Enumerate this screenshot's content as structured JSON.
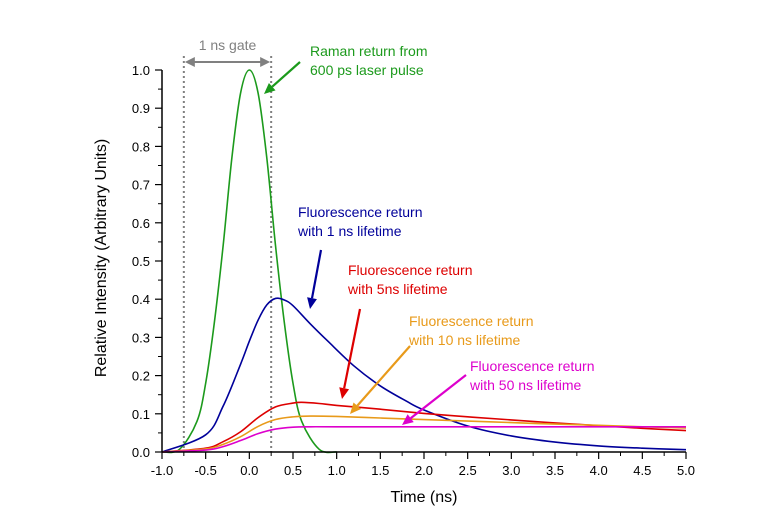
{
  "chart_data": {
    "type": "line",
    "title": "",
    "xlabel": "Time (ns)",
    "ylabel": "Relative Intensity (Arbitrary Units)",
    "xlim": [
      -1.0,
      5.0
    ],
    "ylim": [
      0.0,
      1.0
    ],
    "grid": false,
    "x_ticks": [
      "-1.0",
      "-0.5",
      "0.0",
      "0.5",
      "1.0",
      "1.5",
      "2.0",
      "2.5",
      "3.0",
      "3.5",
      "4.0",
      "4.5",
      "5.0"
    ],
    "y_ticks": [
      "0.0",
      "0.1",
      "0.2",
      "0.3",
      "0.4",
      "0.5",
      "0.6",
      "0.7",
      "0.8",
      "0.9",
      "1.0"
    ],
    "gate": {
      "label": "1 ns gate",
      "x_start": -0.75,
      "x_end": 0.25,
      "color": "#808080"
    },
    "series": [
      {
        "key": "raman",
        "color": "#1c9a1c",
        "x": [
          -1.0,
          -0.8,
          -0.6,
          -0.5,
          -0.4,
          -0.3,
          -0.2,
          -0.1,
          0.0,
          0.1,
          0.2,
          0.3,
          0.4,
          0.5,
          0.6,
          0.8,
          1.0
        ],
        "values": [
          0.0,
          0.007,
          0.08,
          0.18,
          0.34,
          0.54,
          0.77,
          0.94,
          1.0,
          0.94,
          0.77,
          0.54,
          0.34,
          0.18,
          0.08,
          0.007,
          0.0
        ]
      },
      {
        "key": "fluor_1ns",
        "color": "#00009a",
        "x": [
          -1.0,
          -0.5,
          -0.3,
          -0.1,
          0.0,
          0.1,
          0.2,
          0.3,
          0.4,
          0.5,
          0.7,
          0.9,
          1.2,
          1.5,
          1.8,
          2.0,
          2.5,
          3.0,
          3.5,
          4.0,
          4.5,
          5.0
        ],
        "values": [
          0.0,
          0.045,
          0.12,
          0.23,
          0.29,
          0.345,
          0.385,
          0.402,
          0.398,
          0.383,
          0.335,
          0.29,
          0.225,
          0.173,
          0.133,
          0.11,
          0.068,
          0.042,
          0.026,
          0.016,
          0.01,
          0.006
        ]
      },
      {
        "key": "fluor_5ns",
        "color": "#dd0000",
        "x": [
          -1.0,
          -0.5,
          -0.3,
          -0.1,
          0.1,
          0.3,
          0.5,
          0.6,
          0.8,
          1.0,
          1.5,
          2.0,
          2.5,
          3.0,
          3.5,
          4.0,
          4.5,
          5.0
        ],
        "values": [
          0.0,
          0.01,
          0.027,
          0.053,
          0.09,
          0.118,
          0.128,
          0.13,
          0.127,
          0.122,
          0.112,
          0.101,
          0.092,
          0.084,
          0.076,
          0.069,
          0.062,
          0.056
        ]
      },
      {
        "key": "fluor_10ns",
        "color": "#e89a1a",
        "x": [
          -1.0,
          -0.5,
          -0.3,
          -0.1,
          0.1,
          0.3,
          0.5,
          0.7,
          1.0,
          1.5,
          2.0,
          2.5,
          3.0,
          3.5,
          4.0,
          4.5,
          5.0
        ],
        "values": [
          0.0,
          0.008,
          0.02,
          0.04,
          0.067,
          0.085,
          0.092,
          0.094,
          0.093,
          0.089,
          0.085,
          0.081,
          0.077,
          0.073,
          0.07,
          0.066,
          0.063
        ]
      },
      {
        "key": "fluor_50ns",
        "color": "#dd00cc",
        "x": [
          -1.0,
          -0.5,
          -0.3,
          -0.1,
          0.1,
          0.3,
          0.5,
          0.7,
          1.0,
          2.0,
          3.0,
          4.0,
          5.0
        ],
        "values": [
          0.0,
          0.005,
          0.014,
          0.03,
          0.048,
          0.06,
          0.065,
          0.066,
          0.066,
          0.066,
          0.066,
          0.066,
          0.066
        ]
      }
    ],
    "annotations": [
      {
        "key": "raman",
        "lines": [
          "Raman return from",
          "600 ps laser pulse"
        ],
        "color": "#1c9a1c"
      },
      {
        "key": "fluor_1ns",
        "lines": [
          "Fluorescence return",
          "with 1 ns lifetime"
        ],
        "color": "#00009a"
      },
      {
        "key": "fluor_5ns",
        "lines": [
          "Fluorescence return",
          "with 5ns lifetime"
        ],
        "color": "#dd0000"
      },
      {
        "key": "fluor_10ns",
        "lines": [
          "Fluorescence return",
          "with 10 ns lifetime"
        ],
        "color": "#e89a1a"
      },
      {
        "key": "fluor_50ns",
        "lines": [
          "Fluorescence return",
          "with 50 ns lifetime"
        ],
        "color": "#dd00cc"
      }
    ]
  }
}
